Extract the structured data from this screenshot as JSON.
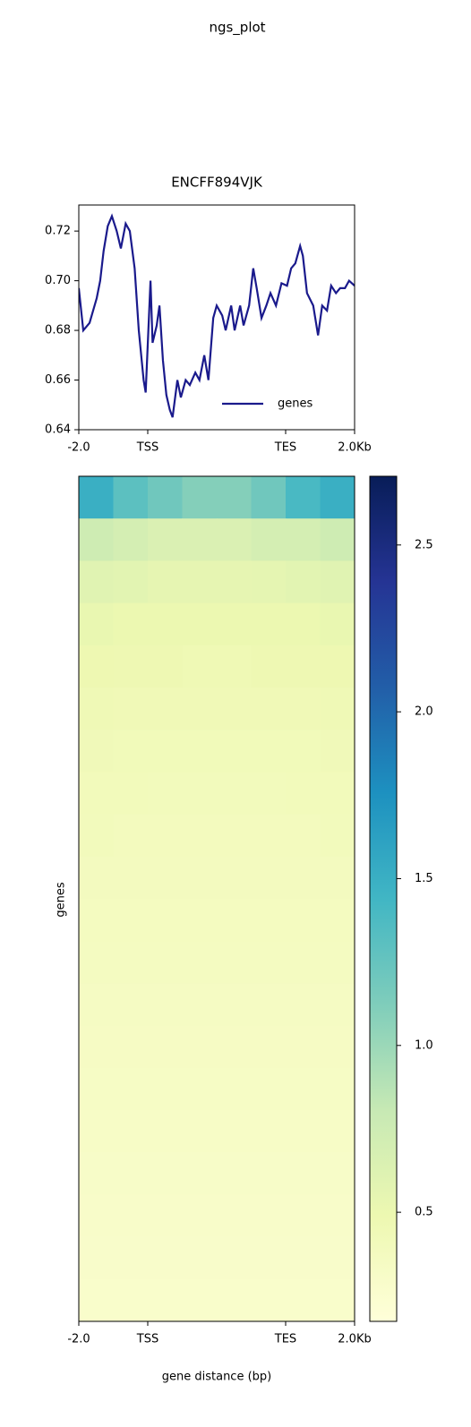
{
  "title": "ngs_plot",
  "chart_data": [
    {
      "type": "line",
      "title": "ENCFF894VJK",
      "xlim": [
        0,
        400
      ],
      "xticks": [
        {
          "value": 0,
          "label": "-2.0"
        },
        {
          "value": 100,
          "label": "TSS"
        },
        {
          "value": 300,
          "label": "TES"
        },
        {
          "value": 400,
          "label": "2.0Kb"
        }
      ],
      "ylim": [
        0.64,
        0.7305
      ],
      "yticks": [
        0.64,
        0.66,
        0.68,
        {
          "value": 0.7,
          "label": "0.70"
        },
        0.72
      ],
      "legend": "lower right",
      "series": [
        {
          "name": "genes",
          "color": "#1a1a8c",
          "x": [
            0,
            6.5,
            15.6,
            26,
            31,
            36,
            42,
            48,
            55,
            61,
            68,
            74,
            81,
            87,
            94,
            97,
            104,
            107,
            113,
            117,
            122,
            127,
            132,
            136,
            143,
            148,
            155,
            161,
            169,
            175,
            182,
            188,
            195,
            200,
            208,
            213,
            221,
            226,
            234,
            239,
            247,
            253,
            258,
            265,
            272,
            278,
            286,
            294,
            302,
            308,
            314,
            321,
            325,
            331,
            340,
            347,
            353,
            360,
            366,
            373,
            379,
            386,
            392,
            400
          ],
          "values": [
            0.697,
            0.68,
            0.683,
            0.693,
            0.7,
            0.712,
            0.722,
            0.726,
            0.72,
            0.713,
            0.723,
            0.72,
            0.705,
            0.68,
            0.66,
            0.655,
            0.7,
            0.675,
            0.682,
            0.69,
            0.668,
            0.654,
            0.648,
            0.645,
            0.66,
            0.653,
            0.66,
            0.658,
            0.663,
            0.66,
            0.67,
            0.66,
            0.685,
            0.69,
            0.686,
            0.68,
            0.69,
            0.68,
            0.69,
            0.682,
            0.69,
            0.705,
            0.697,
            0.685,
            0.69,
            0.695,
            0.69,
            0.699,
            0.698,
            0.705,
            0.707,
            0.714,
            0.71,
            0.695,
            0.69,
            0.678,
            0.69,
            0.688,
            0.698,
            0.695,
            0.697,
            0.697,
            0.7,
            0.698
          ]
        }
      ]
    },
    {
      "type": "heatmap",
      "xlabel": "gene distance (bp)",
      "ylabel": "genes",
      "xlim": [
        0,
        400
      ],
      "xticks": [
        {
          "value": 0,
          "label": "-2.0"
        },
        {
          "value": 100,
          "label": "TSS"
        },
        {
          "value": 300,
          "label": "TES"
        },
        {
          "value": 400,
          "label": "2.0Kb"
        }
      ],
      "zlim": [
        0.173,
        2.706
      ],
      "zticks": [
        0.5,
        {
          "value": 1,
          "label": "1.0"
        },
        1.5,
        {
          "value": 2,
          "label": "2.0"
        },
        2.5
      ],
      "colormap": [
        "#ffffd9",
        "#edf8b1",
        "#c7e9b4",
        "#7fcdbb",
        "#41b6c4",
        "#1d91c0",
        "#225ea8",
        "#253494",
        "#081d58"
      ],
      "matrix": [
        [
          1.5,
          1.3,
          1.2,
          1.1,
          1.1,
          1.2,
          1.4,
          1.5
        ],
        [
          0.75,
          0.7,
          0.65,
          0.65,
          0.65,
          0.7,
          0.7,
          0.75
        ],
        [
          0.6,
          0.58,
          0.55,
          0.55,
          0.55,
          0.56,
          0.58,
          0.6
        ],
        [
          0.52,
          0.5,
          0.5,
          0.5,
          0.5,
          0.5,
          0.5,
          0.52
        ],
        [
          0.48,
          0.47,
          0.47,
          0.46,
          0.46,
          0.47,
          0.47,
          0.48
        ],
        [
          0.45,
          0.44,
          0.44,
          0.44,
          0.44,
          0.44,
          0.44,
          0.45
        ],
        [
          0.43,
          0.42,
          0.42,
          0.42,
          0.42,
          0.42,
          0.42,
          0.43
        ],
        [
          0.41,
          0.41,
          0.4,
          0.4,
          0.4,
          0.4,
          0.41,
          0.41
        ],
        [
          0.4,
          0.39,
          0.39,
          0.39,
          0.39,
          0.39,
          0.39,
          0.4
        ],
        [
          0.38,
          0.38,
          0.38,
          0.38,
          0.38,
          0.38,
          0.38,
          0.38
        ],
        [
          0.37,
          0.37,
          0.37,
          0.37,
          0.37,
          0.37,
          0.37,
          0.37
        ],
        [
          0.36,
          0.36,
          0.36,
          0.36,
          0.36,
          0.36,
          0.36,
          0.36
        ],
        [
          0.35,
          0.35,
          0.35,
          0.35,
          0.35,
          0.35,
          0.35,
          0.35
        ],
        [
          0.34,
          0.34,
          0.34,
          0.34,
          0.34,
          0.34,
          0.34,
          0.34
        ],
        [
          0.33,
          0.33,
          0.33,
          0.33,
          0.33,
          0.33,
          0.33,
          0.33
        ],
        [
          0.32,
          0.32,
          0.32,
          0.32,
          0.32,
          0.32,
          0.32,
          0.32
        ],
        [
          0.31,
          0.31,
          0.31,
          0.31,
          0.31,
          0.31,
          0.31,
          0.31
        ],
        [
          0.3,
          0.3,
          0.3,
          0.3,
          0.3,
          0.3,
          0.3,
          0.3
        ],
        [
          0.29,
          0.29,
          0.29,
          0.29,
          0.29,
          0.29,
          0.29,
          0.29
        ],
        [
          0.28,
          0.28,
          0.28,
          0.28,
          0.28,
          0.28,
          0.28,
          0.28
        ]
      ]
    }
  ]
}
